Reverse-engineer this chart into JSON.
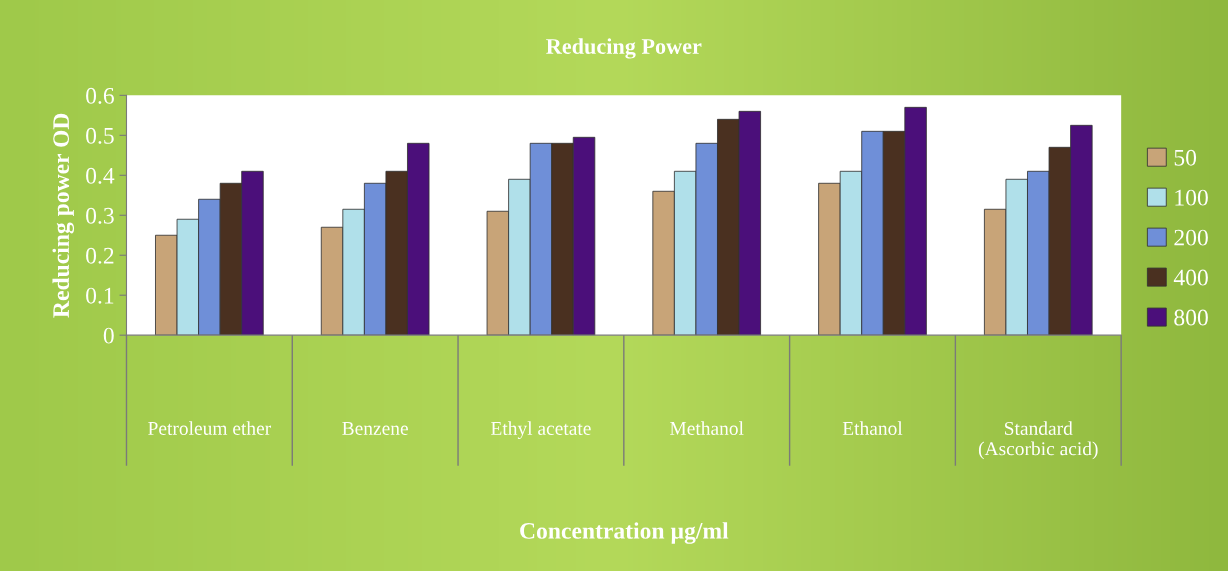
{
  "chart_data": {
    "type": "bar",
    "title": "Reducing Power",
    "xlabel": "Concentration µg/ml",
    "ylabel": "Reducing power OD",
    "categories": [
      "Petroleum ether",
      "Benzene",
      "Ethyl acetate",
      "Methanol",
      "Ethanol",
      "Standard (Ascorbic acid)"
    ],
    "series": [
      {
        "name": "50",
        "color": "#c8a478",
        "values": [
          0.25,
          0.27,
          0.31,
          0.36,
          0.38,
          0.315
        ]
      },
      {
        "name": "100",
        "color": "#b0e0ea",
        "values": [
          0.29,
          0.315,
          0.39,
          0.41,
          0.41,
          0.39
        ]
      },
      {
        "name": "200",
        "color": "#6f8fd8",
        "values": [
          0.34,
          0.38,
          0.48,
          0.48,
          0.51,
          0.41
        ]
      },
      {
        "name": "400",
        "color": "#4a3020",
        "values": [
          0.38,
          0.41,
          0.48,
          0.54,
          0.51,
          0.47
        ]
      },
      {
        "name": "800",
        "color": "#4b0f7a",
        "values": [
          0.41,
          0.48,
          0.495,
          0.56,
          0.57,
          0.525
        ]
      }
    ],
    "ylim": [
      0,
      0.6
    ],
    "yticks": [
      0,
      0.1,
      0.2,
      0.3,
      0.4,
      0.5,
      0.6
    ],
    "grid": false,
    "legend": "right"
  }
}
